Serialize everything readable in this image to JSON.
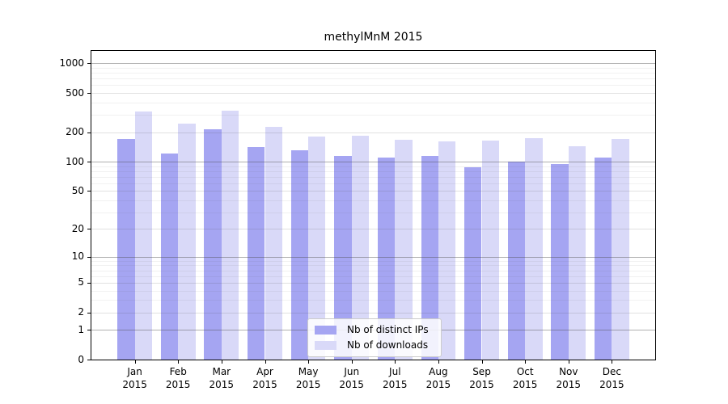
{
  "chart_data": {
    "type": "bar",
    "title": "methylMnM 2015",
    "categories": [
      "Jan",
      "Feb",
      "Mar",
      "Apr",
      "May",
      "Jun",
      "Jul",
      "Aug",
      "Sep",
      "Oct",
      "Nov",
      "Dec"
    ],
    "year_label": "2015",
    "series": [
      {
        "name": "Nb of distinct IPs",
        "color": "#a5a5f2",
        "values": [
          171,
          121,
          216,
          140,
          130,
          115,
          110,
          114,
          88,
          101,
          95,
          110
        ]
      },
      {
        "name": "Nb of downloads",
        "color": "#d9d9f8",
        "values": [
          326,
          243,
          331,
          225,
          180,
          183,
          167,
          161,
          164,
          175,
          145,
          171
        ]
      }
    ],
    "y_ticks": [
      0,
      1,
      2,
      5,
      10,
      20,
      50,
      100,
      200,
      500,
      1000
    ],
    "y_minor_ticks": [
      3,
      4,
      6,
      7,
      8,
      9,
      30,
      40,
      60,
      70,
      80,
      90,
      300,
      400,
      600,
      700,
      800,
      900
    ],
    "y_scale": "log10(1+v)",
    "xlabel": "",
    "ylabel": "",
    "grid": true,
    "legend_position": "lower center",
    "axis_color": "#000000",
    "gridline_major_color": "#b0b0b0",
    "gridline_light_color": "#e3e3e3",
    "background_color": "#ffffff"
  }
}
